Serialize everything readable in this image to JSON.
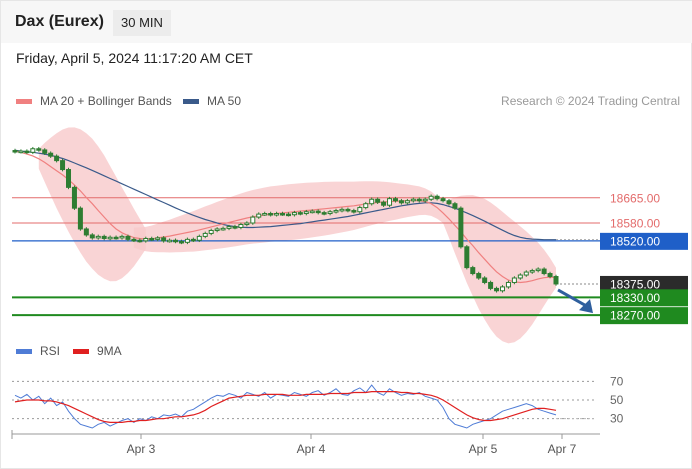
{
  "header": {
    "instrument": "Dax (Eurex)",
    "timeframe": "30 MIN",
    "datetime": "Friday, April 5, 2024 11:17:20 AM CET"
  },
  "legend": {
    "ma20_label": "MA 20 + Bollinger Bands",
    "ma50_label": "MA 50",
    "credit": "Research © 2024 Trading Central",
    "rsi_label": "RSI",
    "rsi_ma_label": "9MA"
  },
  "colors": {
    "ma20": "#f08080",
    "ma50": "#3a5a8a",
    "bands": "#f7c9cb",
    "candle": "#2e7d32",
    "resistance": "#e36b6b",
    "pivot": "#1f5fc8",
    "support": "#1f8a1f",
    "last": "#2b2b2b",
    "rsi": "#4f7cd6",
    "rsi_ma": "#e02020",
    "arrow": "#2f5f9e"
  },
  "chart_data": [
    {
      "type": "line",
      "name": "Price chart",
      "x_labels": [
        "Apr 3",
        "Apr 4",
        "Apr 5",
        "Apr 7"
      ],
      "y_range": [
        18220,
        18920
      ],
      "price_levels": [
        {
          "value": 18665.0,
          "label": "18665.00",
          "kind": "resistance"
        },
        {
          "value": 18580.0,
          "label": "18580.00",
          "kind": "resistance"
        },
        {
          "value": 18520.0,
          "label": "18520.00",
          "kind": "pivot"
        },
        {
          "value": 18375.0,
          "label": "18375.00",
          "kind": "last"
        },
        {
          "value": 18330.0,
          "label": "18330.00",
          "kind": "support"
        },
        {
          "value": 18270.0,
          "label": "18270.00",
          "kind": "support"
        }
      ],
      "series": [
        {
          "name": "Price",
          "values": [
            18820,
            18822,
            18818,
            18830,
            18826,
            18815,
            18805,
            18790,
            18760,
            18700,
            18630,
            18560,
            18540,
            18530,
            18535,
            18528,
            18532,
            18530,
            18535,
            18525,
            18522,
            18520,
            18528,
            18525,
            18530,
            18520,
            18522,
            18518,
            18515,
            18525,
            18522,
            18535,
            18545,
            18555,
            18560,
            18562,
            18568,
            18565,
            18575,
            18580,
            18600,
            18610,
            18612,
            18608,
            18612,
            18610,
            18608,
            18615,
            18612,
            18618,
            18620,
            18615,
            18612,
            18618,
            18622,
            18626,
            18622,
            18618,
            18632,
            18645,
            18660,
            18650,
            18640,
            18662,
            18655,
            18648,
            18655,
            18660,
            18655,
            18660,
            18670,
            18662,
            18655,
            18645,
            18630,
            18500,
            18430,
            18410,
            18395,
            18380,
            18360,
            18352,
            18365,
            18380,
            18395,
            18405,
            18415,
            18420,
            18425,
            18410,
            18400,
            18375
          ]
        },
        {
          "name": "MA 20",
          "values": [
            18822,
            18818,
            18812,
            18806,
            18796,
            18784,
            18770,
            18756,
            18742,
            18726,
            18708,
            18688,
            18666,
            18645,
            18622,
            18600,
            18578,
            18560,
            18547,
            18538,
            18531,
            18528,
            18526,
            18527,
            18530,
            18533,
            18536,
            18540,
            18544,
            18548,
            18552,
            18557,
            18562,
            18567,
            18572,
            18577,
            18582,
            18587,
            18592,
            18597,
            18601,
            18604,
            18607,
            18610,
            18612,
            18614,
            18616,
            18618,
            18620,
            18622,
            18624,
            18626,
            18628,
            18630,
            18632,
            18634,
            18636,
            18638,
            18641,
            18644,
            18647,
            18649,
            18651,
            18652,
            18653,
            18654,
            18655,
            18655,
            18655,
            18652,
            18645,
            18632,
            18614,
            18594,
            18572,
            18550,
            18526,
            18504,
            18480,
            18458,
            18436,
            18416,
            18400,
            18388,
            18382,
            18380,
            18382,
            18386,
            18392,
            18396,
            18398,
            18396
          ]
        },
        {
          "name": "MA 50",
          "values": [
            18825,
            18822,
            18820,
            18818,
            18815,
            18812,
            18808,
            18803,
            18797,
            18790,
            18782,
            18774,
            18766,
            18757,
            18748,
            18739,
            18730,
            18721,
            18712,
            18703,
            18694,
            18685,
            18676,
            18667,
            18658,
            18649,
            18640,
            18631,
            18622,
            18614,
            18606,
            18599,
            18592,
            18586,
            18580,
            18575,
            18571,
            18568,
            18566,
            18565,
            18565,
            18566,
            18567,
            18568,
            18570,
            18572,
            18574,
            18576,
            18578,
            18581,
            18584,
            18587,
            18590,
            18593,
            18596,
            18599,
            18602,
            18606,
            18610,
            18614,
            18618,
            18622,
            18626,
            18630,
            18634,
            18638,
            18641,
            18644,
            18646,
            18648,
            18648,
            18646,
            18642,
            18636,
            18630,
            18622,
            18614,
            18605,
            18596,
            18586,
            18576,
            18566,
            18556,
            18546,
            18538,
            18532,
            18528,
            18526,
            18525,
            18524,
            18524,
            18524
          ]
        }
      ]
    },
    {
      "type": "line",
      "name": "RSI panel",
      "x_labels": [
        "Apr 3",
        "Apr 4",
        "Apr 5",
        "Apr 7"
      ],
      "y_ticks": [
        70,
        50,
        30
      ],
      "y_range": [
        20,
        80
      ],
      "series": [
        {
          "name": "RSI",
          "values": [
            55,
            52,
            56,
            50,
            54,
            46,
            52,
            44,
            48,
            38,
            30,
            24,
            22,
            20,
            24,
            26,
            22,
            25,
            28,
            30,
            26,
            30,
            28,
            32,
            30,
            34,
            33,
            35,
            32,
            38,
            40,
            44,
            48,
            52,
            55,
            54,
            57,
            55,
            52,
            58,
            56,
            54,
            58,
            52,
            56,
            55,
            54,
            58,
            56,
            54,
            58,
            60,
            55,
            58,
            62,
            56,
            55,
            60,
            63,
            58,
            66,
            58,
            55,
            62,
            58,
            55,
            57,
            56,
            58,
            54,
            52,
            50,
            42,
            30,
            24,
            22,
            20,
            24,
            26,
            28,
            30,
            34,
            38,
            40,
            42,
            44,
            46,
            44,
            40,
            38,
            36,
            34
          ]
        },
        {
          "name": "9MA",
          "values": [
            48,
            49,
            50,
            50,
            50,
            49,
            49,
            48,
            46,
            44,
            41,
            38,
            35,
            32,
            29,
            27,
            26,
            26,
            26,
            27,
            27,
            28,
            28,
            29,
            30,
            30,
            31,
            32,
            32,
            33,
            34,
            36,
            39,
            43,
            46,
            49,
            52,
            53,
            54,
            55,
            55,
            55,
            56,
            56,
            56,
            56,
            55,
            55,
            55,
            56,
            56,
            56,
            56,
            57,
            57,
            57,
            57,
            58,
            58,
            58,
            59,
            59,
            59,
            59,
            59,
            58,
            58,
            57,
            57,
            56,
            55,
            53,
            50,
            46,
            42,
            38,
            34,
            31,
            29,
            28,
            28,
            29,
            30,
            32,
            34,
            36,
            38,
            40,
            41,
            41,
            40,
            39
          ]
        }
      ]
    }
  ]
}
